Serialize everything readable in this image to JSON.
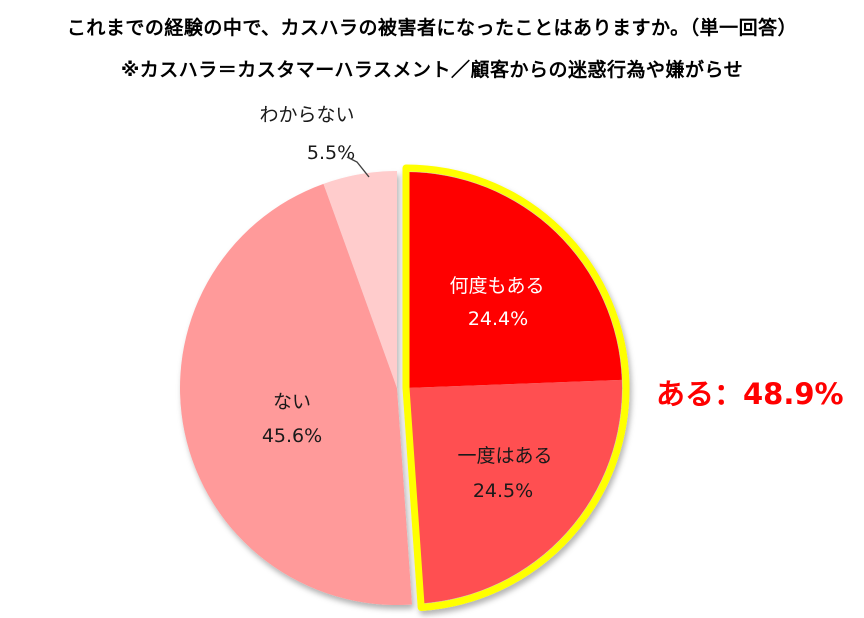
{
  "chart_data": {
    "type": "pie",
    "title": "これまでの経験の中で、カスハラの被害者になったことはありますか。（単一回答）",
    "subtitle": "※カスハラ＝カスタマーハラスメント／顧客からの迷惑行為や嫌がらせ",
    "unit": "%",
    "categories": [
      "何度もある",
      "一度はある",
      "ない",
      "わからない"
    ],
    "values": [
      24.4,
      24.5,
      45.6,
      5.5
    ],
    "colors": [
      "#FF0000",
      "#FF5051",
      "#FF9A9A",
      "#FFCCCC"
    ],
    "label_text_colors": [
      "#FFFFFF",
      "#1A1A1A",
      "#1A1A1A",
      "#1A1A1A"
    ],
    "start_angle": 0,
    "direction": "clockwise",
    "legend_position": "none",
    "outside_label_indices": [
      3
    ],
    "highlight_group": {
      "label": "ある",
      "value": 48.9,
      "display": "ある：48.9%",
      "slice_indices": [
        0,
        1
      ],
      "outline_color": "#FFFF00",
      "exploded": true,
      "text_color": "#FF0000"
    }
  }
}
